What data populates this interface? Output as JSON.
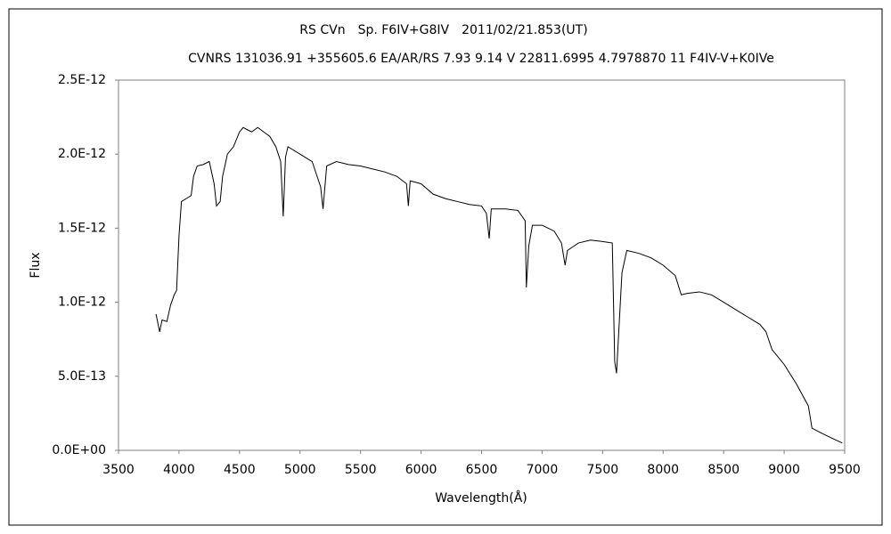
{
  "chart_data": {
    "type": "line",
    "title": "RS CVn　Sp. F6IV+G8IV　2011/02/21.853(UT)",
    "subtitle": "CVNRS 131036.91 +355605.6 EA/AR/RS 7.93 9.14 V 22811.6995 4.7978870 11 F4IV-V+K0IVe",
    "x_label": "Wavelength(Å)",
    "y_label": "Flux",
    "xlim": [
      3500,
      9500
    ],
    "xticks": [
      3500,
      4000,
      4500,
      5000,
      5500,
      6000,
      6500,
      7000,
      7500,
      8000,
      8500,
      9000,
      9500
    ],
    "ylim": [
      0,
      2.5e-12
    ],
    "yticks": [
      {
        "value": 0,
        "label": "0.0E+00"
      },
      {
        "value": 5e-13,
        "label": "5.0E-13"
      },
      {
        "value": 1e-12,
        "label": "1.0E-12"
      },
      {
        "value": 1.5e-12,
        "label": "1.5E-12"
      },
      {
        "value": 2e-12,
        "label": "2.0E-12"
      },
      {
        "value": 2.5e-12,
        "label": "2.5E-12"
      }
    ],
    "grid": false,
    "series": [
      {
        "color": "#000000",
        "x": [
          3810,
          3840,
          3860,
          3900,
          3930,
          3960,
          3980,
          4000,
          4020,
          4060,
          4100,
          4120,
          4150,
          4200,
          4250,
          4290,
          4310,
          4340,
          4360,
          4400,
          4450,
          4500,
          4530,
          4600,
          4650,
          4700,
          4750,
          4800,
          4840,
          4861,
          4880,
          4900,
          5000,
          5100,
          5170,
          5190,
          5220,
          5300,
          5400,
          5500,
          5600,
          5700,
          5800,
          5880,
          5895,
          5910,
          6000,
          6100,
          6200,
          6300,
          6400,
          6500,
          6540,
          6563,
          6580,
          6700,
          6800,
          6860,
          6870,
          6890,
          6920,
          7000,
          7100,
          7160,
          7190,
          7210,
          7300,
          7400,
          7500,
          7580,
          7600,
          7615,
          7640,
          7660,
          7700,
          7800,
          7900,
          8000,
          8100,
          8150,
          8200,
          8300,
          8400,
          8500,
          8600,
          8700,
          8800,
          8850,
          8900,
          9000,
          9100,
          9200,
          9230,
          9300,
          9400,
          9480
        ],
        "values": [
          9.2e-13,
          8e-13,
          8.8e-13,
          8.7e-13,
          9.8e-13,
          1.05e-12,
          1.08e-12,
          1.45e-12,
          1.68e-12,
          1.7e-12,
          1.72e-12,
          1.85e-12,
          1.92e-12,
          1.93e-12,
          1.95e-12,
          1.8e-12,
          1.65e-12,
          1.68e-12,
          1.85e-12,
          2e-12,
          2.05e-12,
          2.15e-12,
          2.18e-12,
          2.15e-12,
          2.18e-12,
          2.15e-12,
          2.12e-12,
          2.05e-12,
          1.95e-12,
          1.58e-12,
          1.98e-12,
          2.05e-12,
          2e-12,
          1.95e-12,
          1.78e-12,
          1.63e-12,
          1.92e-12,
          1.95e-12,
          1.93e-12,
          1.92e-12,
          1.9e-12,
          1.88e-12,
          1.85e-12,
          1.8e-12,
          1.65e-12,
          1.82e-12,
          1.8e-12,
          1.73e-12,
          1.7e-12,
          1.68e-12,
          1.66e-12,
          1.65e-12,
          1.6e-12,
          1.43e-12,
          1.63e-12,
          1.63e-12,
          1.62e-12,
          1.55e-12,
          1.1e-12,
          1.38e-12,
          1.52e-12,
          1.52e-12,
          1.48e-12,
          1.4e-12,
          1.25e-12,
          1.35e-12,
          1.4e-12,
          1.42e-12,
          1.41e-12,
          1.4e-12,
          6e-13,
          5.2e-13,
          9e-13,
          1.2e-12,
          1.35e-12,
          1.33e-12,
          1.3e-12,
          1.25e-12,
          1.18e-12,
          1.05e-12,
          1.06e-12,
          1.07e-12,
          1.05e-12,
          1e-12,
          9.5e-13,
          9e-13,
          8.5e-13,
          8e-13,
          6.8e-13,
          5.8e-13,
          4.5e-13,
          3e-13,
          1.5e-13,
          1.2e-13,
          8e-14,
          5e-14
        ]
      }
    ]
  }
}
